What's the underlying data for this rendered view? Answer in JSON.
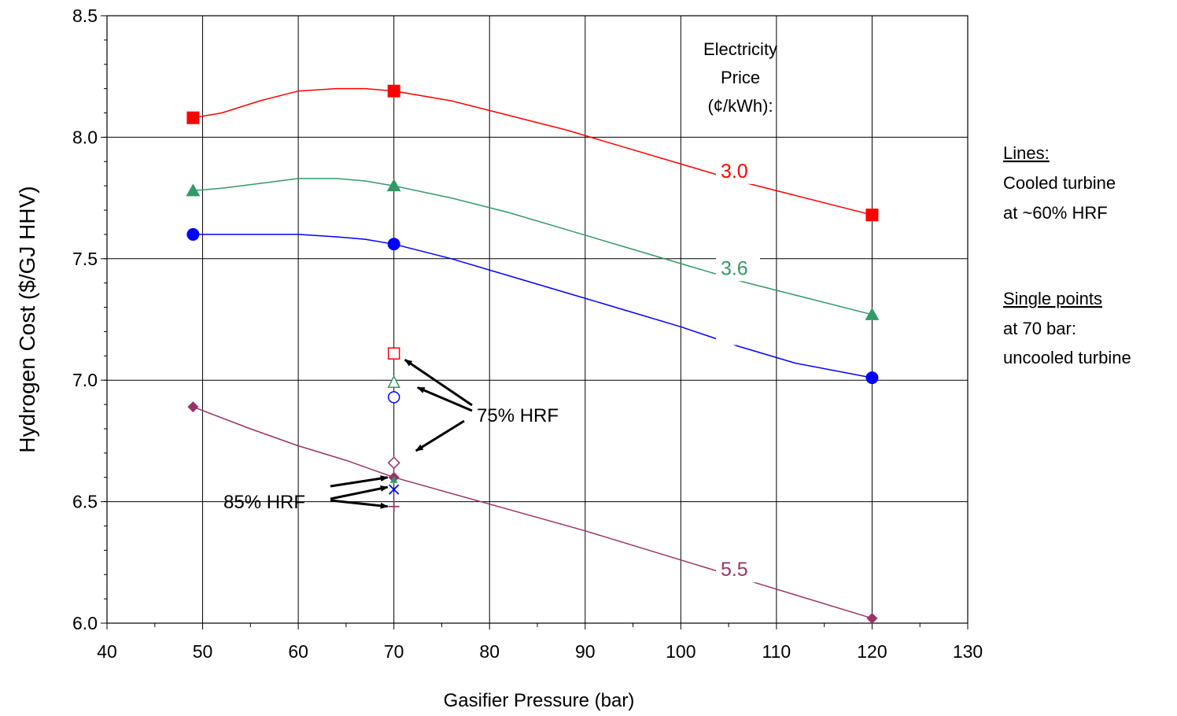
{
  "chart_data": {
    "type": "line",
    "title": "",
    "xlabel": "Gasifier Pressure (bar)",
    "ylabel": "Hydrogen Cost ($/GJ HHV)",
    "xlim": [
      40,
      130
    ],
    "ylim": [
      6.0,
      8.5
    ],
    "x_ticks": [
      "40",
      "50",
      "60",
      "70",
      "80",
      "90",
      "100",
      "110",
      "120",
      "130"
    ],
    "y_ticks": [
      "6.0",
      "6.5",
      "7.0",
      "7.5",
      "8.0",
      "8.5"
    ],
    "grid": true,
    "legend_title": [
      "Electricity",
      "Price",
      "(¢/kWh):"
    ],
    "series": [
      {
        "name": "3.0",
        "color": "#ff0000",
        "marker": "square",
        "x": [
          49,
          70,
          120
        ],
        "y": [
          8.08,
          8.19,
          7.68
        ],
        "curve": [
          [
            49,
            8.08
          ],
          [
            52,
            8.1
          ],
          [
            56,
            8.15
          ],
          [
            60,
            8.19
          ],
          [
            64,
            8.2
          ],
          [
            67,
            8.2
          ],
          [
            70,
            8.19
          ],
          [
            76,
            8.15
          ],
          [
            82,
            8.09
          ],
          [
            88,
            8.03
          ],
          [
            94,
            7.96
          ],
          [
            100,
            7.89
          ],
          [
            106,
            7.82
          ],
          [
            112,
            7.76
          ],
          [
            120,
            7.68
          ]
        ]
      },
      {
        "name": "3.6",
        "color": "#339966",
        "marker": "triangle",
        "x": [
          49,
          70,
          120
        ],
        "y": [
          7.78,
          7.8,
          7.27
        ],
        "curve": [
          [
            49,
            7.78
          ],
          [
            52,
            7.79
          ],
          [
            56,
            7.81
          ],
          [
            60,
            7.83
          ],
          [
            64,
            7.83
          ],
          [
            67,
            7.82
          ],
          [
            70,
            7.8
          ],
          [
            76,
            7.75
          ],
          [
            82,
            7.69
          ],
          [
            88,
            7.62
          ],
          [
            94,
            7.55
          ],
          [
            100,
            7.48
          ],
          [
            106,
            7.41
          ],
          [
            112,
            7.35
          ],
          [
            120,
            7.27
          ]
        ]
      },
      {
        "name": "",
        "color": "#0000ff",
        "marker": "circle",
        "x": [
          49,
          70,
          120
        ],
        "y": [
          7.6,
          7.56,
          7.01
        ],
        "curve": [
          [
            49,
            7.6
          ],
          [
            52,
            7.6
          ],
          [
            56,
            7.6
          ],
          [
            60,
            7.6
          ],
          [
            64,
            7.59
          ],
          [
            67,
            7.58
          ],
          [
            70,
            7.56
          ],
          [
            76,
            7.5
          ],
          [
            82,
            7.43
          ],
          [
            88,
            7.36
          ],
          [
            94,
            7.29
          ],
          [
            100,
            7.22
          ],
          [
            106,
            7.14
          ],
          [
            112,
            7.07
          ],
          [
            120,
            7.01
          ]
        ]
      },
      {
        "name": "5.5",
        "color": "#993366",
        "marker": "diamond",
        "x": [
          49,
          70,
          120
        ],
        "y": [
          6.89,
          6.6,
          6.02
        ],
        "curve": [
          [
            49,
            6.89
          ],
          [
            55,
            6.8
          ],
          [
            60,
            6.73
          ],
          [
            65,
            6.67
          ],
          [
            70,
            6.6
          ],
          [
            80,
            6.49
          ],
          [
            90,
            6.38
          ],
          [
            100,
            6.26
          ],
          [
            110,
            6.14
          ],
          [
            120,
            6.02
          ]
        ]
      }
    ],
    "single_points": [
      {
        "x": 70,
        "y": 7.11,
        "marker": "open-square",
        "color": "#ff0000"
      },
      {
        "x": 70,
        "y": 6.99,
        "marker": "open-triangle",
        "color": "#339966"
      },
      {
        "x": 70,
        "y": 6.93,
        "marker": "open-circle",
        "color": "#0000ff"
      },
      {
        "x": 70,
        "y": 6.66,
        "marker": "open-diamond",
        "color": "#993366"
      },
      {
        "x": 70,
        "y": 6.59,
        "marker": "small-triangle",
        "color": "#339966"
      },
      {
        "x": 70,
        "y": 6.55,
        "marker": "x-cross",
        "color": "#0000ff"
      },
      {
        "x": 70,
        "y": 6.48,
        "marker": "plus",
        "color": "#993366"
      }
    ],
    "annotations": {
      "hrf75": "75% HRF",
      "hrf85": "85% HRF"
    },
    "notes": {
      "lines_heading": "Lines:",
      "lines_text": [
        "Cooled turbine",
        "at ~60% HRF"
      ],
      "points_heading": "Single points",
      "points_text": [
        "at 70 bar:",
        "uncooled turbine"
      ]
    }
  }
}
